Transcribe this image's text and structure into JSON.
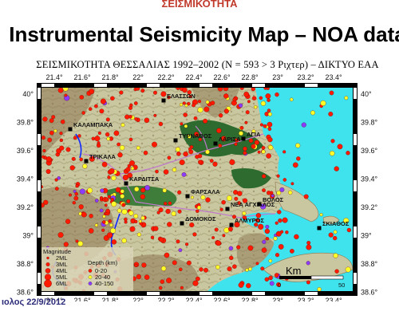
{
  "header": {
    "top_label": "ΣΕΙΣΜΙΚΟΤΗΤΑ",
    "title": "Instrumental Seismicity Map – NOA data",
    "subtitle": "ΣΕΙΣΜΙΚΟΤΗΤΑ ΘΕΣΣΑΛΙΑΣ 1992–2002 (N = 593 > 3 Ριχτερ) – ΔΙΚΤΥΟ ΕΑΑ"
  },
  "footer": {
    "text": "ιολος 22/9/2012"
  },
  "map": {
    "lon_ticks": [
      "21.4°",
      "21.6°",
      "21.8°",
      "22°",
      "22.2°",
      "22.4°",
      "22.6°",
      "22.8°",
      "23°",
      "23.2°",
      "23.4°"
    ],
    "lat_ticks": [
      "40°",
      "39.8°",
      "39.6°",
      "39.4°",
      "39.2°",
      "39°",
      "38.8°",
      "38.6°"
    ],
    "towns": [
      "ΕΛΑΣΣΩΝ",
      "ΚΑΛΑΜΠΑΚΑ",
      "ΤΥΡΝΑΒΟΣ",
      "ΛΑΡΙΣΑ",
      "ΑΓΙΑ",
      "ΤΡΙΚΑΛΑ",
      "ΚΑΡΔΙΤΣΑ",
      "ΦΑΡΣΑΛΑ",
      "ΒΟΛΟΣ",
      "ΝΕΑ ΑΓΧΙΑΛΟΣ",
      "ΑΛΜΥΡΟΣ",
      "ΔΟΜΟΚΟΣ",
      "ΣΚΙΑΘΟΣ"
    ],
    "scale_unit": "Km",
    "scale_label_zero": "0",
    "scale_label_max": "50",
    "colors": {
      "land": "#c9c7a0",
      "sea": "#3fe3ee",
      "plain": "#2d6b2e",
      "mountain": "#8c7550",
      "shallow": "#ff1a00",
      "mid": "#ffff2a",
      "deep": "#8a3cff",
      "road": "#c07acb",
      "river": "#1028ff"
    }
  },
  "legend": {
    "magnitude_title": "Magnitude",
    "magnitudes": [
      "2ML",
      "3ML",
      "4ML",
      "5ML",
      "6ML"
    ],
    "depth_title": "Depth (km)",
    "depths": [
      {
        "label": "0-20",
        "color": "#ff1a00"
      },
      {
        "label": "20-40",
        "color": "#ffff2a"
      },
      {
        "label": "40-150",
        "color": "#8a3cff"
      }
    ]
  }
}
